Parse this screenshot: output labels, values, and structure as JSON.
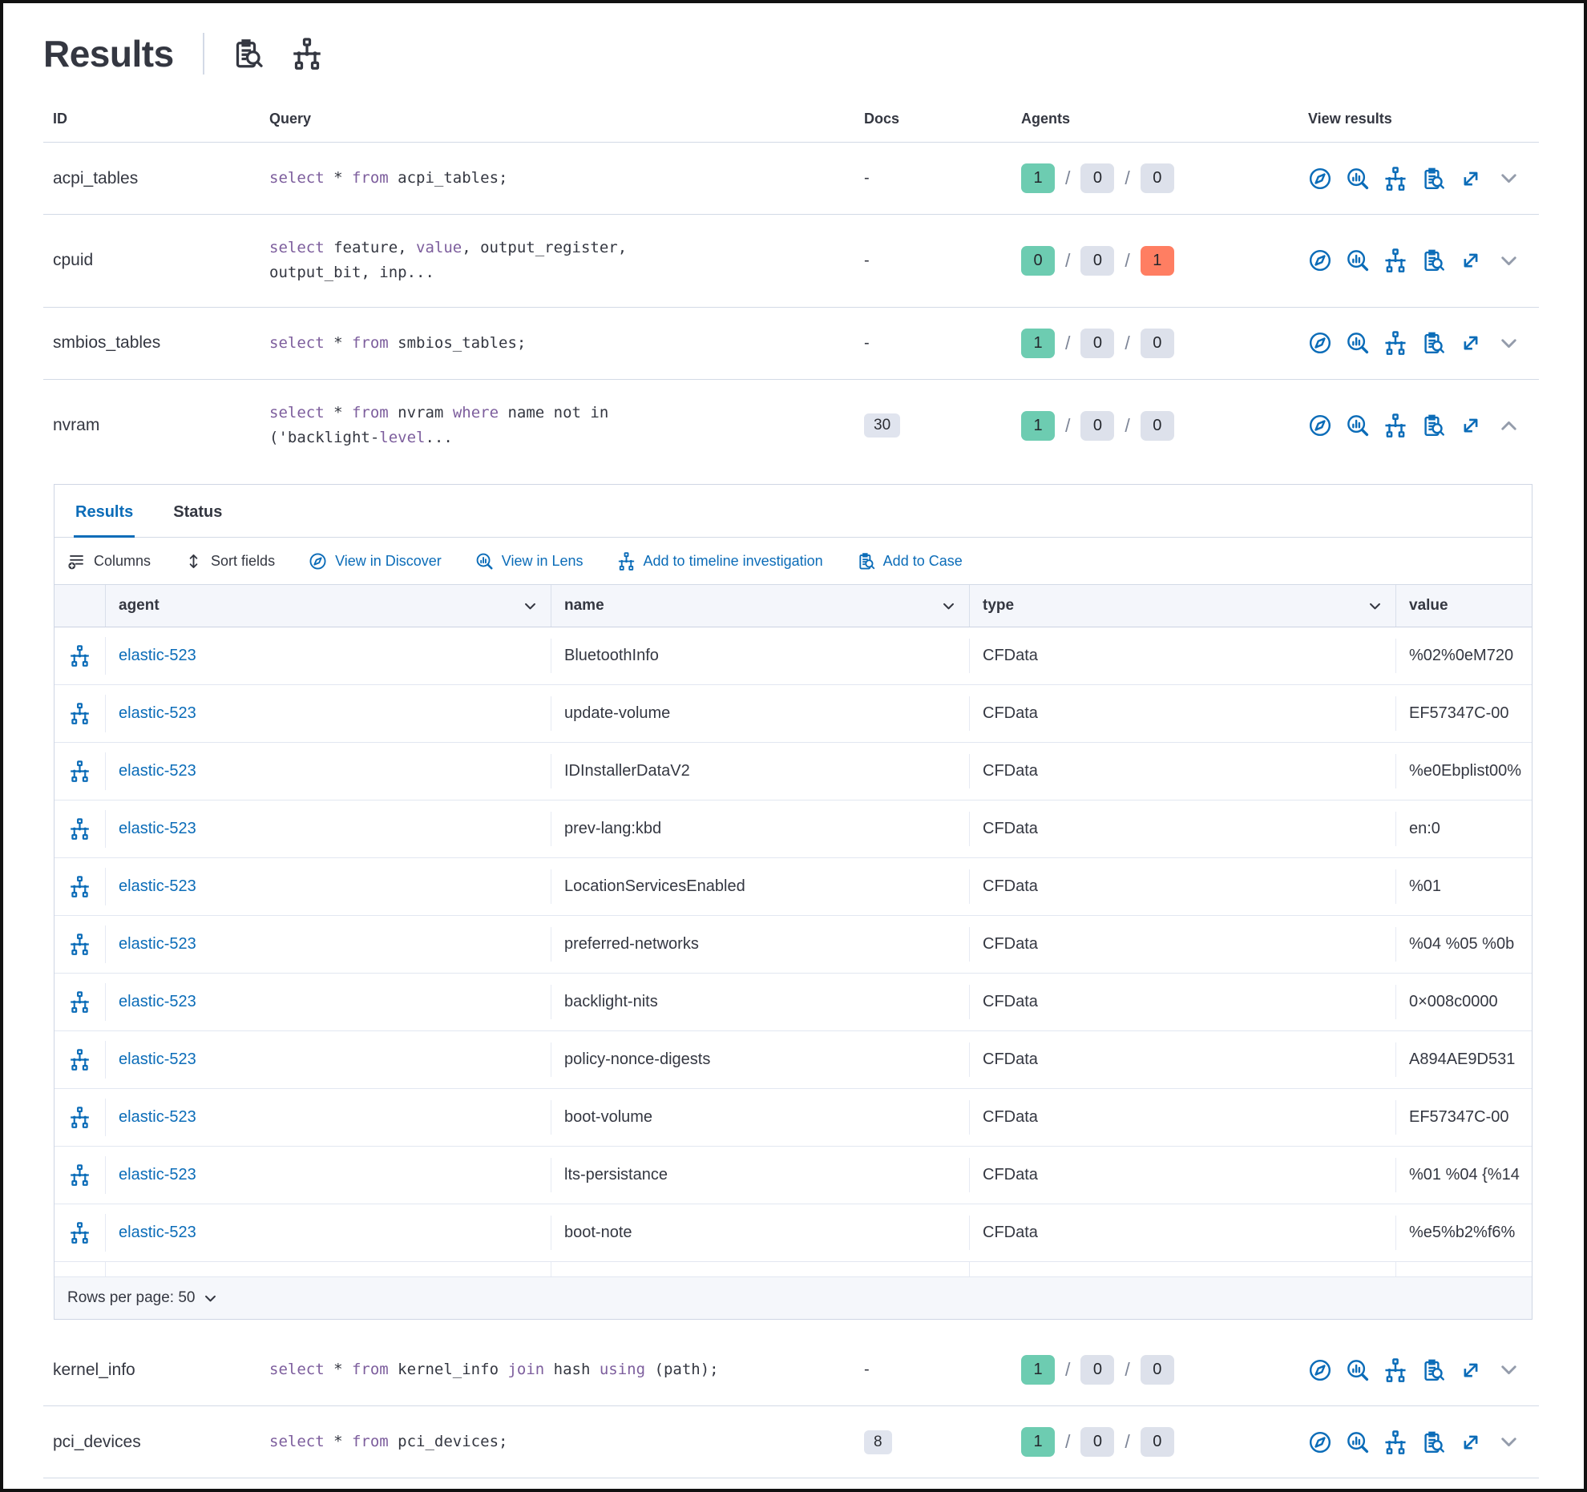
{
  "page": {
    "title": "Results"
  },
  "colors": {
    "primary": "#0b6cb8",
    "keyword_purple": "#7d5e9d",
    "badge_success": "#6dccb1",
    "badge_default": "#dde1eb",
    "badge_danger": "#ff7e62"
  },
  "query_table": {
    "headers": {
      "id": "ID",
      "query": "Query",
      "docs": "Docs",
      "agents": "Agents",
      "view_results": "View results"
    },
    "rows_top": [
      {
        "id": "acpi_tables",
        "query_lines": [
          [
            {
              "t": "select",
              "k": true
            },
            {
              "t": " * ",
              "k": false
            },
            {
              "t": "from",
              "k": true
            },
            {
              "t": " acpi_tables;",
              "k": false
            }
          ]
        ],
        "docs": {
          "badge": false,
          "text": "-"
        },
        "agents": [
          {
            "n": "1",
            "c": "success"
          },
          {
            "n": "0",
            "c": "default"
          },
          {
            "n": "0",
            "c": "default"
          }
        ],
        "expanded": false
      },
      {
        "id": "cpuid",
        "query_lines": [
          [
            {
              "t": "select",
              "k": true
            },
            {
              "t": " feature, ",
              "k": false
            },
            {
              "t": "value",
              "k": true
            },
            {
              "t": ", output_register,",
              "k": false
            }
          ],
          [
            {
              "t": "output_bit, inp...",
              "k": false
            }
          ]
        ],
        "docs": {
          "badge": false,
          "text": "-"
        },
        "agents": [
          {
            "n": "0",
            "c": "success"
          },
          {
            "n": "0",
            "c": "default"
          },
          {
            "n": "1",
            "c": "danger"
          }
        ],
        "expanded": false
      },
      {
        "id": "smbios_tables",
        "query_lines": [
          [
            {
              "t": "select",
              "k": true
            },
            {
              "t": " * ",
              "k": false
            },
            {
              "t": "from",
              "k": true
            },
            {
              "t": " smbios_tables;",
              "k": false
            }
          ]
        ],
        "docs": {
          "badge": false,
          "text": "-"
        },
        "agents": [
          {
            "n": "1",
            "c": "success"
          },
          {
            "n": "0",
            "c": "default"
          },
          {
            "n": "0",
            "c": "default"
          }
        ],
        "expanded": false
      },
      {
        "id": "nvram",
        "query_lines": [
          [
            {
              "t": "select",
              "k": true
            },
            {
              "t": " * ",
              "k": false
            },
            {
              "t": "from",
              "k": true
            },
            {
              "t": " nvram ",
              "k": false
            },
            {
              "t": "where",
              "k": true
            },
            {
              "t": " name not in",
              "k": false
            }
          ],
          [
            {
              "t": "('backlight-",
              "k": false
            },
            {
              "t": "level",
              "k": true
            },
            {
              "t": "...",
              "k": false
            }
          ]
        ],
        "docs": {
          "badge": true,
          "text": "30"
        },
        "agents": [
          {
            "n": "1",
            "c": "success"
          },
          {
            "n": "0",
            "c": "default"
          },
          {
            "n": "0",
            "c": "default"
          }
        ],
        "expanded": true
      }
    ],
    "rows_bottom": [
      {
        "id": "kernel_info",
        "query_lines": [
          [
            {
              "t": "select",
              "k": true
            },
            {
              "t": " * ",
              "k": false
            },
            {
              "t": "from",
              "k": true
            },
            {
              "t": " kernel_info ",
              "k": false
            },
            {
              "t": "join",
              "k": true
            },
            {
              "t": " hash ",
              "k": false
            },
            {
              "t": "using",
              "k": true
            },
            {
              "t": " (path);",
              "k": false
            }
          ]
        ],
        "docs": {
          "badge": false,
          "text": "-"
        },
        "agents": [
          {
            "n": "1",
            "c": "success"
          },
          {
            "n": "0",
            "c": "default"
          },
          {
            "n": "0",
            "c": "default"
          }
        ],
        "expanded": false
      },
      {
        "id": "pci_devices",
        "query_lines": [
          [
            {
              "t": "select",
              "k": true
            },
            {
              "t": " * ",
              "k": false
            },
            {
              "t": "from",
              "k": true
            },
            {
              "t": " pci_devices;",
              "k": false
            }
          ]
        ],
        "docs": {
          "badge": true,
          "text": "8"
        },
        "agents": [
          {
            "n": "1",
            "c": "success"
          },
          {
            "n": "0",
            "c": "default"
          },
          {
            "n": "0",
            "c": "default"
          }
        ],
        "expanded": false
      }
    ]
  },
  "results_panel": {
    "tabs": [
      {
        "label": "Results",
        "active": true
      },
      {
        "label": "Status",
        "active": false
      }
    ],
    "toolbar": [
      {
        "label": "Columns",
        "icon": "columns",
        "style": "dark"
      },
      {
        "label": "Sort fields",
        "icon": "sort",
        "style": "dark"
      },
      {
        "label": "View in Discover",
        "icon": "discover",
        "style": "link"
      },
      {
        "label": "View in Lens",
        "icon": "lens",
        "style": "link"
      },
      {
        "label": "Add to timeline investigation",
        "icon": "timeline",
        "style": "link"
      },
      {
        "label": "Add to Case",
        "icon": "case",
        "style": "link"
      }
    ],
    "grid": {
      "columns": [
        {
          "label": "agent",
          "sortable": true
        },
        {
          "label": "name",
          "sortable": true
        },
        {
          "label": "type",
          "sortable": true
        },
        {
          "label": "value",
          "sortable": false
        }
      ],
      "rows": [
        {
          "agent": "elastic-523",
          "name": "BluetoothInfo",
          "type": "CFData",
          "value": "%02%0eM720"
        },
        {
          "agent": "elastic-523",
          "name": "update-volume",
          "type": "CFData",
          "value": "EF57347C-00"
        },
        {
          "agent": "elastic-523",
          "name": "IDInstallerDataV2",
          "type": "CFData",
          "value": "%e0Ebplist00%"
        },
        {
          "agent": "elastic-523",
          "name": "prev-lang:kbd",
          "type": "CFData",
          "value": "en:0"
        },
        {
          "agent": "elastic-523",
          "name": "LocationServicesEnabled",
          "type": "CFData",
          "value": "%01"
        },
        {
          "agent": "elastic-523",
          "name": "preferred-networks",
          "type": "CFData",
          "value": "%04 %05 %0b"
        },
        {
          "agent": "elastic-523",
          "name": "backlight-nits",
          "type": "CFData",
          "value": "0×008c0000"
        },
        {
          "agent": "elastic-523",
          "name": "policy-nonce-digests",
          "type": "CFData",
          "value": "A894AE9D531"
        },
        {
          "agent": "elastic-523",
          "name": "boot-volume",
          "type": "CFData",
          "value": "EF57347C-00"
        },
        {
          "agent": "elastic-523",
          "name": "lts-persistance",
          "type": "CFData",
          "value": "%01 %04 {%14"
        },
        {
          "agent": "elastic-523",
          "name": "boot-note",
          "type": "CFData",
          "value": "%e5%b2%f6%"
        }
      ],
      "pagination": {
        "label": "Rows per page: 50"
      }
    }
  }
}
